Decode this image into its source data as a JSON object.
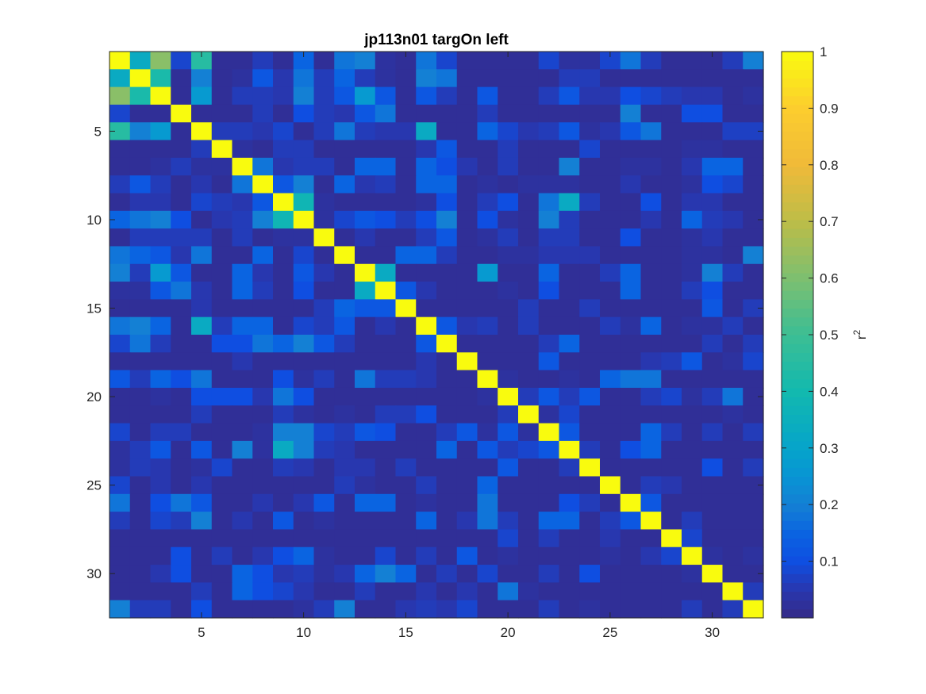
{
  "chart_data": {
    "type": "heatmap",
    "title": "jp113n01 targOn left",
    "n": 32,
    "x_ticks": [
      5,
      10,
      15,
      20,
      25,
      30
    ],
    "y_ticks": [
      5,
      10,
      15,
      20,
      25,
      30
    ],
    "x_tick_labels": [
      "5",
      "10",
      "15",
      "20",
      "25",
      "30"
    ],
    "y_tick_labels": [
      "5",
      "10",
      "15",
      "20",
      "25",
      "30"
    ],
    "colorbar": {
      "label": "r",
      "label_superscript": "2",
      "ticks": [
        0.1,
        0.2,
        0.3,
        0.4,
        0.5,
        0.6,
        0.7,
        0.8,
        0.9,
        1
      ],
      "tick_labels": [
        "0.1",
        "0.2",
        "0.3",
        "0.4",
        "0.5",
        "0.6",
        "0.7",
        "0.8",
        "0.9",
        "1"
      ],
      "range": [
        0.0,
        1.0
      ],
      "colormap": "parula"
    },
    "values": [
      [
        1.0,
        0.33,
        0.62,
        0.08,
        0.45,
        0.02,
        0.02,
        0.06,
        0.02,
        0.15,
        0.02,
        0.18,
        0.2,
        0.03,
        0.02,
        0.18,
        0.08,
        0.02,
        0.02,
        0.02,
        0.02,
        0.08,
        0.03,
        0.03,
        0.08,
        0.18,
        0.06,
        0.02,
        0.02,
        0.02,
        0.06,
        0.2
      ],
      [
        0.33,
        1.0,
        0.42,
        0.02,
        0.2,
        0.02,
        0.03,
        0.12,
        0.05,
        0.18,
        0.06,
        0.15,
        0.06,
        0.03,
        0.02,
        0.2,
        0.18,
        0.02,
        0.02,
        0.02,
        0.02,
        0.02,
        0.06,
        0.06,
        0.02,
        0.02,
        0.02,
        0.02,
        0.02,
        0.02,
        0.02,
        0.02
      ],
      [
        0.62,
        0.42,
        1.0,
        0.02,
        0.27,
        0.02,
        0.06,
        0.06,
        0.05,
        0.2,
        0.06,
        0.12,
        0.27,
        0.12,
        0.02,
        0.12,
        0.06,
        0.02,
        0.12,
        0.02,
        0.02,
        0.06,
        0.12,
        0.05,
        0.05,
        0.1,
        0.08,
        0.06,
        0.05,
        0.05,
        0.02,
        0.03
      ],
      [
        0.08,
        0.02,
        0.02,
        1.0,
        0.02,
        0.02,
        0.02,
        0.06,
        0.02,
        0.1,
        0.06,
        0.05,
        0.12,
        0.18,
        0.02,
        0.02,
        0.02,
        0.02,
        0.06,
        0.02,
        0.02,
        0.02,
        0.02,
        0.02,
        0.02,
        0.2,
        0.02,
        0.02,
        0.1,
        0.1,
        0.02,
        0.02
      ],
      [
        0.45,
        0.2,
        0.27,
        0.02,
        1.0,
        0.06,
        0.06,
        0.05,
        0.08,
        0.02,
        0.06,
        0.18,
        0.06,
        0.05,
        0.05,
        0.33,
        0.02,
        0.02,
        0.15,
        0.08,
        0.05,
        0.06,
        0.12,
        0.03,
        0.05,
        0.12,
        0.18,
        0.02,
        0.02,
        0.02,
        0.07,
        0.07
      ],
      [
        0.02,
        0.02,
        0.02,
        0.02,
        0.06,
        1.0,
        0.03,
        0.02,
        0.06,
        0.06,
        0.02,
        0.02,
        0.02,
        0.02,
        0.02,
        0.05,
        0.12,
        0.02,
        0.02,
        0.06,
        0.02,
        0.02,
        0.02,
        0.08,
        0.02,
        0.02,
        0.02,
        0.02,
        0.03,
        0.03,
        0.02,
        0.02
      ],
      [
        0.02,
        0.02,
        0.03,
        0.06,
        0.03,
        0.03,
        1.0,
        0.18,
        0.05,
        0.06,
        0.06,
        0.02,
        0.15,
        0.15,
        0.02,
        0.15,
        0.1,
        0.05,
        0.02,
        0.06,
        0.02,
        0.02,
        0.2,
        0.02,
        0.02,
        0.03,
        0.03,
        0.02,
        0.05,
        0.15,
        0.15,
        0.02
      ],
      [
        0.06,
        0.12,
        0.06,
        0.02,
        0.05,
        0.02,
        0.18,
        1.0,
        0.12,
        0.2,
        0.02,
        0.15,
        0.05,
        0.06,
        0.02,
        0.15,
        0.15,
        0.02,
        0.03,
        0.02,
        0.03,
        0.03,
        0.03,
        0.02,
        0.02,
        0.05,
        0.02,
        0.02,
        0.03,
        0.1,
        0.08,
        0.02
      ],
      [
        0.02,
        0.05,
        0.05,
        0.02,
        0.08,
        0.06,
        0.05,
        0.12,
        1.0,
        0.38,
        0.03,
        0.02,
        0.02,
        0.02,
        0.02,
        0.03,
        0.1,
        0.02,
        0.06,
        0.1,
        0.02,
        0.18,
        0.33,
        0.06,
        0.02,
        0.02,
        0.1,
        0.02,
        0.05,
        0.05,
        0.02,
        0.02
      ],
      [
        0.15,
        0.18,
        0.2,
        0.1,
        0.02,
        0.05,
        0.06,
        0.2,
        0.38,
        1.0,
        0.03,
        0.08,
        0.12,
        0.1,
        0.06,
        0.1,
        0.2,
        0.02,
        0.1,
        0.03,
        0.02,
        0.2,
        0.06,
        0.02,
        0.02,
        0.02,
        0.05,
        0.02,
        0.15,
        0.06,
        0.05,
        0.02
      ],
      [
        0.02,
        0.06,
        0.06,
        0.06,
        0.06,
        0.02,
        0.06,
        0.02,
        0.03,
        0.03,
        1.0,
        0.02,
        0.05,
        0.02,
        0.02,
        0.06,
        0.12,
        0.02,
        0.03,
        0.06,
        0.02,
        0.06,
        0.06,
        0.02,
        0.02,
        0.1,
        0.02,
        0.02,
        0.03,
        0.05,
        0.02,
        0.02
      ],
      [
        0.18,
        0.15,
        0.12,
        0.05,
        0.18,
        0.02,
        0.02,
        0.15,
        0.02,
        0.08,
        0.02,
        1.0,
        0.02,
        0.02,
        0.15,
        0.15,
        0.06,
        0.02,
        0.02,
        0.03,
        0.03,
        0.05,
        0.05,
        0.05,
        0.02,
        0.02,
        0.02,
        0.02,
        0.03,
        0.03,
        0.02,
        0.2
      ],
      [
        0.2,
        0.06,
        0.27,
        0.12,
        0.02,
        0.02,
        0.15,
        0.05,
        0.02,
        0.12,
        0.05,
        0.02,
        1.0,
        0.33,
        0.02,
        0.02,
        0.02,
        0.02,
        0.27,
        0.02,
        0.02,
        0.15,
        0.02,
        0.02,
        0.06,
        0.15,
        0.02,
        0.02,
        0.03,
        0.2,
        0.06,
        0.02
      ],
      [
        0.03,
        0.03,
        0.12,
        0.18,
        0.05,
        0.02,
        0.15,
        0.06,
        0.02,
        0.1,
        0.02,
        0.02,
        0.33,
        1.0,
        0.12,
        0.05,
        0.02,
        0.02,
        0.02,
        0.03,
        0.02,
        0.1,
        0.02,
        0.02,
        0.02,
        0.15,
        0.02,
        0.02,
        0.06,
        0.1,
        0.02,
        0.02
      ],
      [
        0.02,
        0.02,
        0.02,
        0.02,
        0.05,
        0.02,
        0.02,
        0.02,
        0.02,
        0.02,
        0.06,
        0.15,
        0.12,
        0.12,
        1.0,
        0.02,
        0.02,
        0.02,
        0.02,
        0.02,
        0.06,
        0.02,
        0.02,
        0.06,
        0.02,
        0.02,
        0.02,
        0.02,
        0.02,
        0.12,
        0.02,
        0.06
      ],
      [
        0.18,
        0.2,
        0.15,
        0.02,
        0.33,
        0.06,
        0.15,
        0.15,
        0.02,
        0.08,
        0.06,
        0.12,
        0.02,
        0.05,
        0.02,
        1.0,
        0.12,
        0.05,
        0.06,
        0.02,
        0.06,
        0.02,
        0.02,
        0.02,
        0.06,
        0.03,
        0.15,
        0.02,
        0.03,
        0.03,
        0.06,
        0.02
      ],
      [
        0.08,
        0.18,
        0.06,
        0.02,
        0.02,
        0.1,
        0.1,
        0.18,
        0.15,
        0.2,
        0.12,
        0.06,
        0.02,
        0.02,
        0.02,
        0.12,
        1.0,
        0.02,
        0.02,
        0.02,
        0.02,
        0.06,
        0.15,
        0.02,
        0.02,
        0.02,
        0.02,
        0.02,
        0.02,
        0.06,
        0.02,
        0.06
      ],
      [
        0.02,
        0.02,
        0.02,
        0.02,
        0.02,
        0.02,
        0.05,
        0.02,
        0.02,
        0.02,
        0.02,
        0.02,
        0.02,
        0.02,
        0.02,
        0.05,
        0.02,
        1.0,
        0.02,
        0.02,
        0.02,
        0.12,
        0.02,
        0.02,
        0.02,
        0.02,
        0.05,
        0.06,
        0.12,
        0.02,
        0.03,
        0.08
      ],
      [
        0.12,
        0.06,
        0.15,
        0.1,
        0.18,
        0.02,
        0.02,
        0.02,
        0.1,
        0.03,
        0.06,
        0.02,
        0.18,
        0.06,
        0.06,
        0.05,
        0.02,
        0.02,
        1.0,
        0.03,
        0.02,
        0.02,
        0.03,
        0.02,
        0.15,
        0.18,
        0.18,
        0.02,
        0.02,
        0.02,
        0.02,
        0.02
      ],
      [
        0.02,
        0.02,
        0.03,
        0.02,
        0.1,
        0.1,
        0.1,
        0.05,
        0.18,
        0.1,
        0.02,
        0.02,
        0.02,
        0.02,
        0.02,
        0.02,
        0.02,
        0.02,
        0.03,
        1.0,
        0.06,
        0.12,
        0.06,
        0.12,
        0.02,
        0.02,
        0.06,
        0.08,
        0.03,
        0.06,
        0.18,
        0.02
      ],
      [
        0.02,
        0.02,
        0.02,
        0.02,
        0.06,
        0.02,
        0.02,
        0.02,
        0.06,
        0.03,
        0.02,
        0.03,
        0.02,
        0.06,
        0.06,
        0.1,
        0.02,
        0.02,
        0.02,
        0.06,
        1.0,
        0.03,
        0.08,
        0.02,
        0.02,
        0.02,
        0.02,
        0.02,
        0.02,
        0.02,
        0.03,
        0.02
      ],
      [
        0.08,
        0.02,
        0.06,
        0.06,
        0.02,
        0.02,
        0.02,
        0.03,
        0.2,
        0.2,
        0.08,
        0.06,
        0.12,
        0.1,
        0.02,
        0.02,
        0.06,
        0.12,
        0.03,
        0.12,
        0.03,
        1.0,
        0.12,
        0.02,
        0.02,
        0.02,
        0.15,
        0.06,
        0.02,
        0.06,
        0.02,
        0.06
      ],
      [
        0.03,
        0.06,
        0.12,
        0.02,
        0.12,
        0.02,
        0.2,
        0.03,
        0.33,
        0.2,
        0.06,
        0.05,
        0.02,
        0.02,
        0.02,
        0.02,
        0.15,
        0.02,
        0.12,
        0.06,
        0.08,
        0.12,
        1.0,
        0.06,
        0.02,
        0.1,
        0.15,
        0.02,
        0.02,
        0.02,
        0.02,
        0.02
      ],
      [
        0.03,
        0.06,
        0.05,
        0.02,
        0.03,
        0.08,
        0.02,
        0.02,
        0.06,
        0.05,
        0.02,
        0.05,
        0.05,
        0.02,
        0.06,
        0.02,
        0.02,
        0.02,
        0.02,
        0.12,
        0.02,
        0.02,
        0.06,
        1.0,
        0.02,
        0.02,
        0.02,
        0.02,
        0.02,
        0.1,
        0.02,
        0.06
      ],
      [
        0.08,
        0.02,
        0.05,
        0.02,
        0.05,
        0.02,
        0.02,
        0.02,
        0.02,
        0.02,
        0.02,
        0.06,
        0.03,
        0.02,
        0.02,
        0.06,
        0.02,
        0.02,
        0.15,
        0.02,
        0.02,
        0.02,
        0.02,
        0.02,
        1.0,
        0.02,
        0.06,
        0.05,
        0.02,
        0.02,
        0.02,
        0.02
      ],
      [
        0.18,
        0.02,
        0.1,
        0.18,
        0.12,
        0.02,
        0.02,
        0.05,
        0.02,
        0.05,
        0.12,
        0.02,
        0.15,
        0.15,
        0.02,
        0.03,
        0.02,
        0.02,
        0.18,
        0.02,
        0.02,
        0.02,
        0.1,
        0.06,
        0.02,
        1.0,
        0.12,
        0.02,
        0.02,
        0.02,
        0.02,
        0.02
      ],
      [
        0.06,
        0.02,
        0.08,
        0.06,
        0.2,
        0.02,
        0.05,
        0.02,
        0.12,
        0.02,
        0.03,
        0.02,
        0.02,
        0.02,
        0.02,
        0.15,
        0.02,
        0.05,
        0.18,
        0.06,
        0.02,
        0.15,
        0.15,
        0.02,
        0.06,
        0.12,
        1.0,
        0.02,
        0.06,
        0.02,
        0.02,
        0.02
      ],
      [
        0.02,
        0.02,
        0.02,
        0.02,
        0.02,
        0.02,
        0.02,
        0.02,
        0.02,
        0.02,
        0.02,
        0.02,
        0.02,
        0.02,
        0.02,
        0.02,
        0.02,
        0.02,
        0.02,
        0.08,
        0.02,
        0.06,
        0.02,
        0.02,
        0.05,
        0.02,
        0.02,
        1.0,
        0.08,
        0.02,
        0.02,
        0.02
      ],
      [
        0.02,
        0.02,
        0.02,
        0.1,
        0.02,
        0.06,
        0.02,
        0.05,
        0.1,
        0.15,
        0.03,
        0.02,
        0.02,
        0.08,
        0.02,
        0.06,
        0.02,
        0.12,
        0.02,
        0.03,
        0.02,
        0.02,
        0.02,
        0.02,
        0.03,
        0.02,
        0.05,
        0.08,
        1.0,
        0.03,
        0.02,
        0.03
      ],
      [
        0.02,
        0.02,
        0.05,
        0.1,
        0.02,
        0.02,
        0.15,
        0.1,
        0.05,
        0.06,
        0.03,
        0.05,
        0.15,
        0.2,
        0.15,
        0.02,
        0.06,
        0.02,
        0.08,
        0.02,
        0.02,
        0.06,
        0.02,
        0.1,
        0.02,
        0.02,
        0.02,
        0.02,
        0.03,
        1.0,
        0.02,
        0.02
      ],
      [
        0.02,
        0.02,
        0.02,
        0.02,
        0.06,
        0.02,
        0.15,
        0.1,
        0.08,
        0.05,
        0.02,
        0.02,
        0.06,
        0.02,
        0.02,
        0.05,
        0.02,
        0.05,
        0.02,
        0.18,
        0.03,
        0.02,
        0.02,
        0.02,
        0.02,
        0.02,
        0.02,
        0.02,
        0.02,
        0.02,
        1.0,
        0.06
      ],
      [
        0.2,
        0.06,
        0.06,
        0.02,
        0.1,
        0.02,
        0.02,
        0.02,
        0.02,
        0.03,
        0.06,
        0.2,
        0.02,
        0.02,
        0.05,
        0.06,
        0.05,
        0.08,
        0.02,
        0.02,
        0.02,
        0.06,
        0.02,
        0.03,
        0.02,
        0.02,
        0.02,
        0.02,
        0.06,
        0.02,
        0.06,
        1.0
      ]
    ]
  }
}
